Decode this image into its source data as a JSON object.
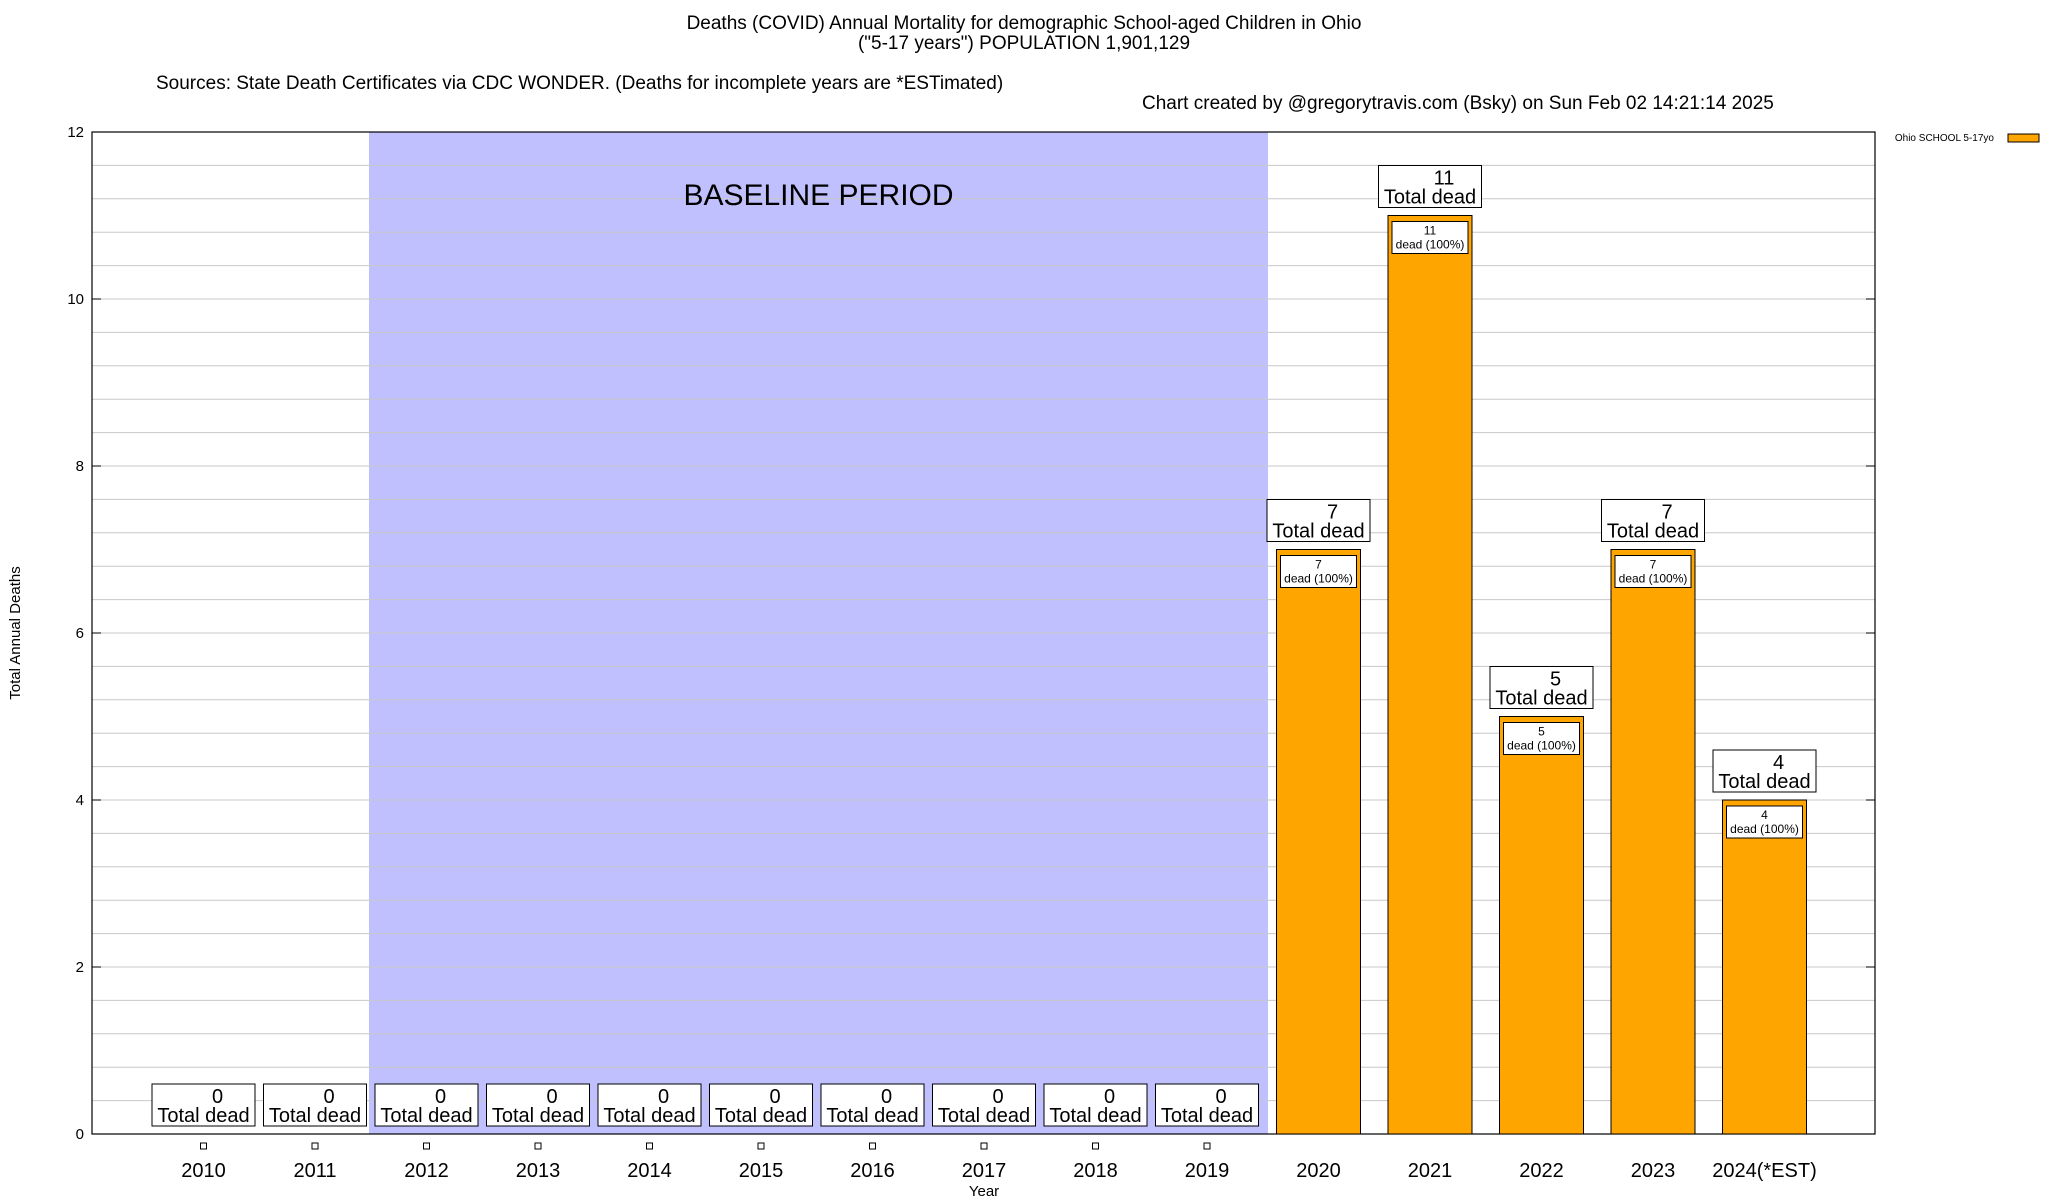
{
  "header": {
    "title_line1": "Deaths (COVID) Annual Mortality for demographic School-aged Children in Ohio",
    "title_line2": "(\"5-17 years\") POPULATION 1,901,129",
    "sources": "Sources: State Death Certificates via CDC WONDER. (Deaths for incomplete years are *ESTimated)",
    "credit": "Chart created by @gregorytravis.com (Bsky) on Sun Feb 02 14:21:14 2025"
  },
  "chart_data": {
    "type": "bar",
    "xlabel": "Year",
    "ylabel": "Total Annual Deaths",
    "ylim": [
      0,
      12
    ],
    "yticks": [
      0,
      2,
      4,
      6,
      8,
      10,
      12
    ],
    "y_minor_step": 0.4,
    "grid": true,
    "legend_placement": "top-right, outside plot",
    "categories": [
      "2010",
      "2011",
      "2012",
      "2013",
      "2014",
      "2015",
      "2016",
      "2017",
      "2018",
      "2019",
      "2020",
      "2021",
      "2022",
      "2023",
      "2024(*EST)"
    ],
    "series": [
      {
        "name": "Ohio SCHOOL 5-17yo",
        "color": "#ffa500",
        "values": [
          0,
          0,
          0,
          0,
          0,
          0,
          0,
          0,
          0,
          0,
          7,
          11,
          5,
          7,
          4
        ]
      }
    ],
    "total_label_word": "Total dead",
    "inner_label_word": "dead (100%)",
    "baseline": {
      "label": "BASELINE PERIOD",
      "from_index": 2,
      "to_index": 9,
      "color": "#c0c0ff"
    }
  }
}
